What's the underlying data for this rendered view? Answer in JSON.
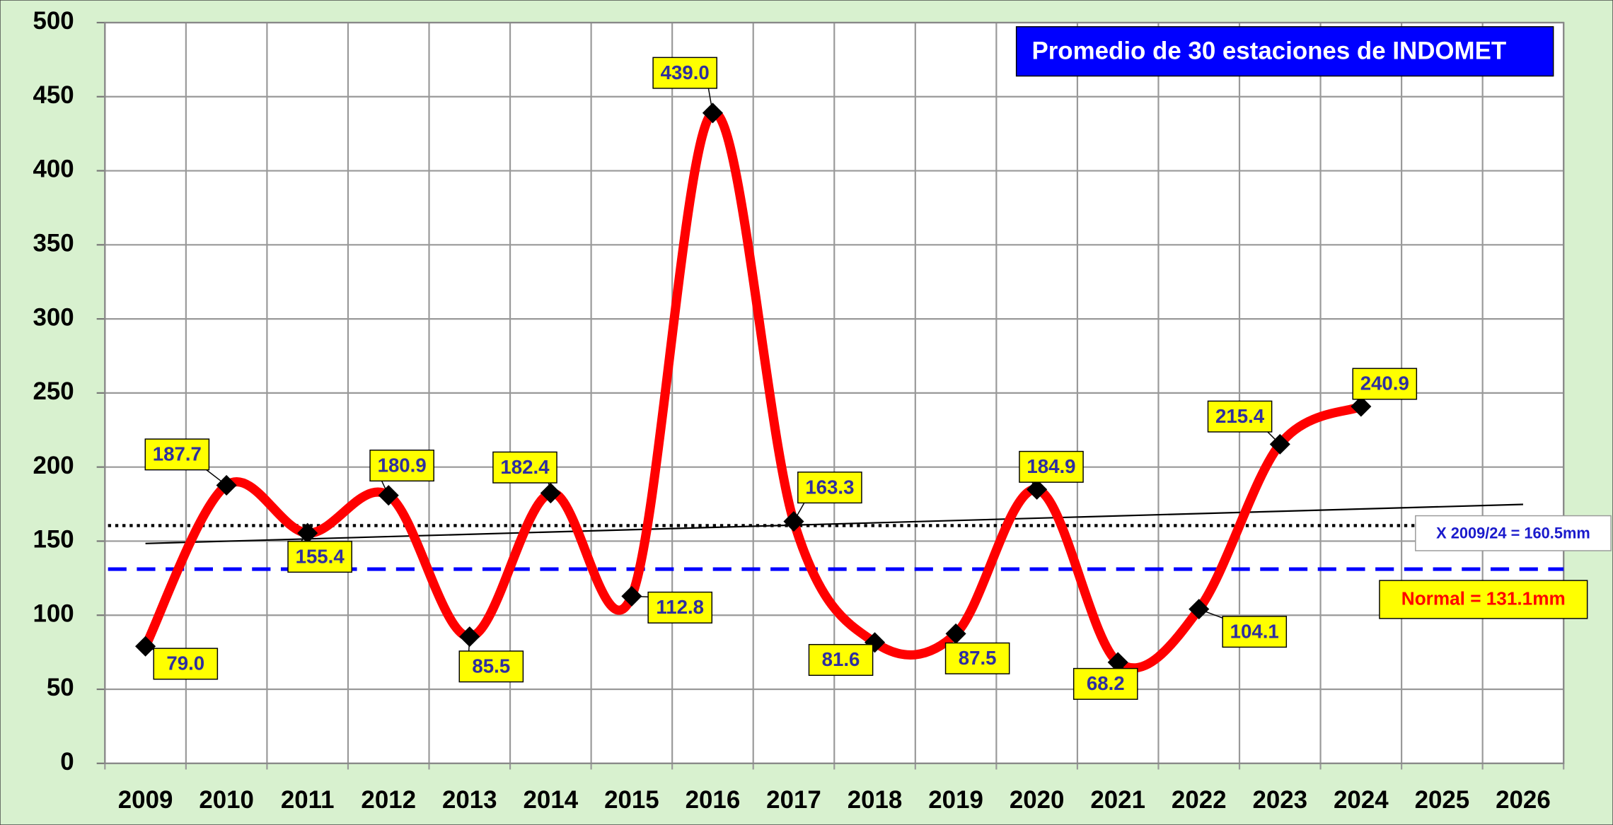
{
  "chart_data": {
    "type": "line",
    "title": "Promedio de 30 estaciones de INDOMET",
    "categories": [
      "2009",
      "2010",
      "2011",
      "2012",
      "2013",
      "2014",
      "2015",
      "2016",
      "2017",
      "2018",
      "2019",
      "2020",
      "2021",
      "2022",
      "2023",
      "2024",
      "2025",
      "2026"
    ],
    "values": [
      79,
      187.7,
      155.4,
      180.9,
      85.5,
      182.4,
      112.8,
      439,
      163.3,
      81.6,
      87.5,
      184.9,
      68.2,
      104.1,
      215.4,
      240.9,
      null,
      null
    ],
    "value_labels": [
      "79.0",
      "187.7",
      "155.4",
      "180.9",
      "85.5",
      "182.4",
      "112.8",
      "439.0",
      "163.3",
      "81.6",
      "87.5",
      "184.9",
      "68.2",
      "104.1",
      "215.4",
      "240.9",
      null,
      null
    ],
    "color": "#ff0000",
    "ylim": [
      0,
      500
    ],
    "yticks": [
      0,
      50,
      100,
      150,
      200,
      250,
      300,
      350,
      400,
      450,
      500
    ],
    "grid": true,
    "reference_lines": [
      {
        "value": 160.5,
        "label": "X 2009/24 = 160.5mm",
        "color": "#000000",
        "style": "dotted"
      },
      {
        "value": 131.1,
        "label": "Normal = 131.1mm",
        "color": "#0000ff",
        "style": "dashed"
      }
    ],
    "trendline": {
      "values": [
        148.4,
        174.8
      ],
      "color": "#000000"
    }
  }
}
